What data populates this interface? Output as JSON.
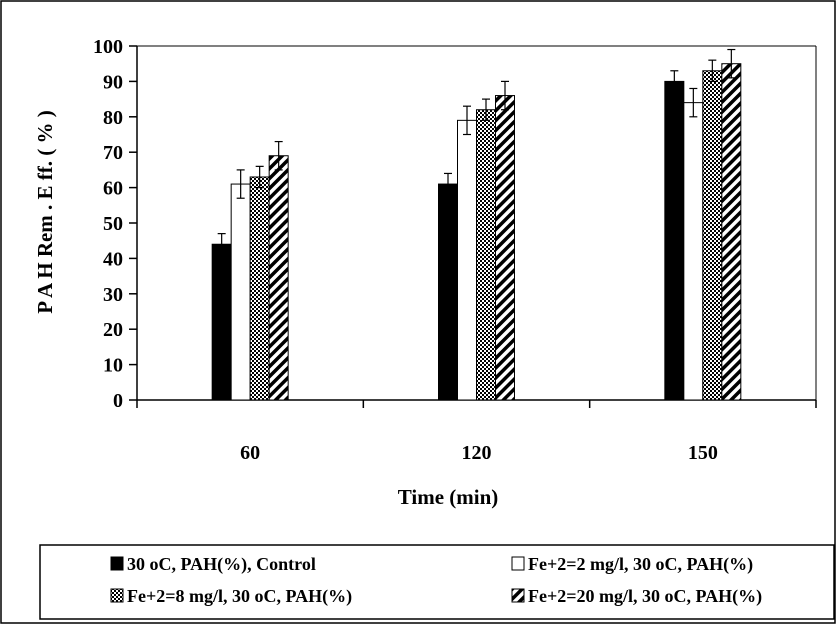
{
  "chart_data": {
    "type": "bar",
    "title": "",
    "xlabel": "Time (min)",
    "ylabel": "P A H  Rem . E ff.  ( % )",
    "categories": [
      "60",
      "120",
      "150"
    ],
    "ylim": [
      0,
      100
    ],
    "yticks": [
      "0",
      "10",
      "20",
      "30",
      "40",
      "50",
      "60",
      "70",
      "80",
      "90",
      "100"
    ],
    "grid": false,
    "legend_position": "bottom",
    "series": [
      {
        "name": "30 oC, PAH(%), Control",
        "fill": "solid",
        "color": "#000000",
        "values": [
          44,
          61,
          90
        ],
        "errors": [
          3,
          3,
          3
        ]
      },
      {
        "name": "Fe+2=2 mg/l, 30 oC, PAH(%)",
        "fill": "white",
        "color": "#ffffff",
        "values": [
          61,
          79,
          84
        ],
        "errors": [
          4,
          4,
          4
        ]
      },
      {
        "name": "Fe+2=8 mg/l, 30 oC, PAH(%)",
        "fill": "crosshatch",
        "color": "#555555",
        "values": [
          63,
          82,
          93
        ],
        "errors": [
          3,
          3,
          3
        ]
      },
      {
        "name": "Fe+2=20 mg/l, 30 oC, PAH(%)",
        "fill": "diagonal",
        "color": "#000000",
        "values": [
          69,
          86,
          95
        ],
        "errors": [
          4,
          4,
          4
        ]
      }
    ]
  }
}
